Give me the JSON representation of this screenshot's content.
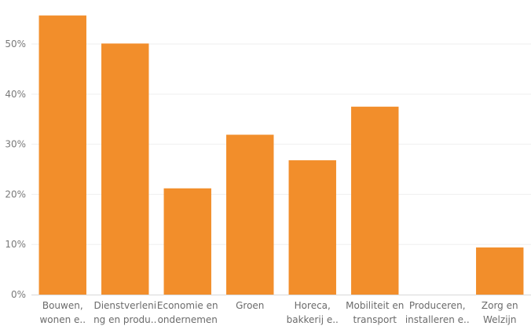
{
  "chart_data": {
    "type": "bar",
    "title": "",
    "xlabel": "",
    "ylabel": "",
    "categories": [
      [
        "Bouwen,",
        "wonen e.."
      ],
      [
        "Dienstverleni",
        "ng en produ.."
      ],
      [
        "Economie en",
        "ondernemen"
      ],
      [
        "Groen"
      ],
      [
        "Horeca,",
        "bakkerij e.."
      ],
      [
        "Mobiliteit en",
        "transport"
      ],
      [
        "Produceren,",
        "installeren e.."
      ],
      [
        "Zorg en",
        "Welzijn"
      ]
    ],
    "values": [
      55.7,
      50.1,
      21.2,
      31.9,
      26.8,
      37.5,
      0,
      9.4
    ],
    "ylim": [
      0,
      58
    ],
    "yticks": [
      0,
      10,
      20,
      30,
      40,
      50
    ],
    "ytick_labels": [
      "0%",
      "10%",
      "20%",
      "30%",
      "40%",
      "50%"
    ],
    "bar_color": "#f28e2b",
    "grid": true,
    "legend": "none"
  }
}
